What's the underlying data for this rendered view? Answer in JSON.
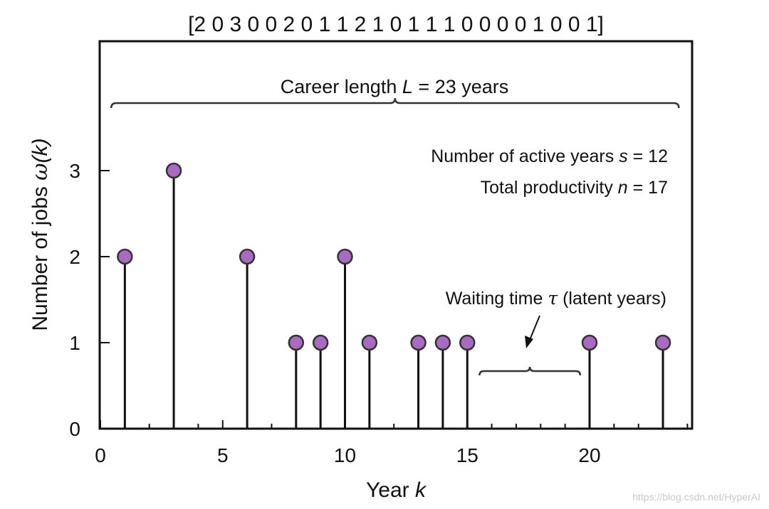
{
  "chart_data": {
    "type": "stem",
    "title": "[2 0 3 0 0 2 0 1 1 2 1 0 1 1 1 0 0 0 0 1 0 0 1]",
    "sequence": [
      2,
      0,
      3,
      0,
      0,
      2,
      0,
      1,
      1,
      2,
      1,
      0,
      1,
      1,
      1,
      0,
      0,
      0,
      0,
      1,
      0,
      0,
      1
    ],
    "x": [
      1,
      3,
      6,
      8,
      9,
      10,
      11,
      13,
      14,
      15,
      20,
      23
    ],
    "values": [
      2,
      3,
      2,
      1,
      1,
      2,
      1,
      1,
      1,
      1,
      1,
      1
    ],
    "xlim": [
      0,
      24
    ],
    "ylim": [
      0,
      4
    ],
    "xticks": [
      0,
      5,
      10,
      15,
      20
    ],
    "yticks": [
      0,
      1,
      2,
      3
    ],
    "xlabel": {
      "text": "Year",
      "var": "k"
    },
    "ylabel": {
      "text": "Number of jobs",
      "sym": "ω",
      "arg": "(k)"
    },
    "marker_color": "#a96bc1",
    "annotations": {
      "career": {
        "pre": "Career length",
        "var": "L",
        "post": "= 23 years",
        "from": 0.5,
        "to": 24
      },
      "active": {
        "pre": "Number of active years",
        "var": "s",
        "post": "= 12"
      },
      "productivity": {
        "pre": "Total productivity",
        "var": "n",
        "post": "= 17"
      },
      "waiting": {
        "pre": "Waiting time",
        "sym": "τ",
        "post": "(latent years)",
        "from": 15.5,
        "to": 19.5
      }
    },
    "grid": false,
    "legend": "none"
  },
  "watermark": "https://blog.csdn.net/HyperAI"
}
